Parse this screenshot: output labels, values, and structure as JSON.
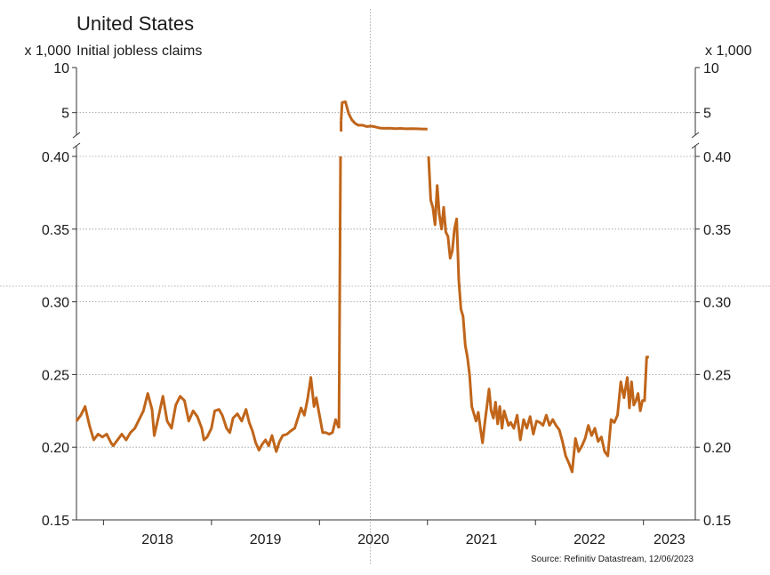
{
  "chart_data": {
    "type": "line",
    "title": "United States",
    "subtitle": "Initial jobless claims",
    "unit_left": "x 1,000",
    "unit_right": "x 1,000",
    "source": "Source: Refinitiv Datastream, 12/06/2023",
    "colors": {
      "line": "#c0651a",
      "grid": "#9a9a9a",
      "axis": "#333333"
    },
    "axis_break": true,
    "y_upper_ticks": [
      {
        "value": 10,
        "label": "10"
      },
      {
        "value": 5,
        "label": "5"
      }
    ],
    "y_upper_range": [
      2.7,
      10
    ],
    "y_ticks": [
      {
        "value": 0.4,
        "label": "0.40"
      },
      {
        "value": 0.35,
        "label": "0.35"
      },
      {
        "value": 0.3,
        "label": "0.30"
      },
      {
        "value": 0.25,
        "label": "0.25"
      },
      {
        "value": 0.2,
        "label": "0.20"
      },
      {
        "value": 0.15,
        "label": "0.15"
      }
    ],
    "y_range": [
      0.15,
      0.4
    ],
    "x_range": [
      2017.75,
      2023.48
    ],
    "x_ticks": [
      {
        "value": 2018.0,
        "label": "2018"
      },
      {
        "value": 2019.0,
        "label": "2019"
      },
      {
        "value": 2020.0,
        "label": "2020"
      },
      {
        "value": 2021.0,
        "label": "2021"
      },
      {
        "value": 2022.0,
        "label": "2022"
      },
      {
        "value": 2023.0,
        "label": "2023"
      }
    ],
    "grid": true,
    "series": [
      {
        "low": [
          [
            2017.75,
            0.218
          ],
          [
            2017.79,
            0.222
          ],
          [
            2017.83,
            0.228
          ],
          [
            2017.87,
            0.215
          ],
          [
            2017.91,
            0.205
          ],
          [
            2017.95,
            0.209
          ],
          [
            2017.99,
            0.207
          ],
          [
            2018.03,
            0.209
          ],
          [
            2018.07,
            0.203
          ],
          [
            2018.09,
            0.201
          ],
          [
            2018.13,
            0.205
          ],
          [
            2018.17,
            0.209
          ],
          [
            2018.21,
            0.205
          ],
          [
            2018.25,
            0.21
          ],
          [
            2018.29,
            0.213
          ],
          [
            2018.33,
            0.219
          ],
          [
            2018.37,
            0.225
          ],
          [
            2018.41,
            0.237
          ],
          [
            2018.45,
            0.226
          ],
          [
            2018.47,
            0.208
          ],
          [
            2018.51,
            0.221
          ],
          [
            2018.55,
            0.235
          ],
          [
            2018.59,
            0.218
          ],
          [
            2018.63,
            0.213
          ],
          [
            2018.67,
            0.229
          ],
          [
            2018.71,
            0.235
          ],
          [
            2018.75,
            0.232
          ],
          [
            2018.79,
            0.218
          ],
          [
            2018.83,
            0.225
          ],
          [
            2018.87,
            0.221
          ],
          [
            2018.91,
            0.213
          ],
          [
            2018.93,
            0.205
          ],
          [
            2018.96,
            0.207
          ],
          [
            2019.0,
            0.213
          ],
          [
            2019.03,
            0.225
          ],
          [
            2019.07,
            0.226
          ],
          [
            2019.1,
            0.222
          ],
          [
            2019.14,
            0.213
          ],
          [
            2019.17,
            0.21
          ],
          [
            2019.2,
            0.22
          ],
          [
            2019.24,
            0.223
          ],
          [
            2019.28,
            0.218
          ],
          [
            2019.32,
            0.226
          ],
          [
            2019.35,
            0.217
          ],
          [
            2019.38,
            0.211
          ],
          [
            2019.41,
            0.203
          ],
          [
            2019.44,
            0.198
          ],
          [
            2019.47,
            0.202
          ],
          [
            2019.5,
            0.205
          ],
          [
            2019.53,
            0.201
          ],
          [
            2019.56,
            0.208
          ],
          [
            2019.6,
            0.197
          ],
          [
            2019.63,
            0.204
          ],
          [
            2019.66,
            0.208
          ],
          [
            2019.7,
            0.209
          ],
          [
            2019.73,
            0.211
          ],
          [
            2019.77,
            0.213
          ],
          [
            2019.8,
            0.22
          ],
          [
            2019.83,
            0.227
          ],
          [
            2019.86,
            0.222
          ],
          [
            2019.89,
            0.233
          ],
          [
            2019.92,
            0.248
          ],
          [
            2019.95,
            0.228
          ],
          [
            2019.97,
            0.234
          ],
          [
            2020.0,
            0.222
          ],
          [
            2020.03,
            0.21
          ],
          [
            2020.06,
            0.21
          ],
          [
            2020.09,
            0.209
          ],
          [
            2020.12,
            0.21
          ],
          [
            2020.15,
            0.219
          ],
          [
            2020.18,
            0.213
          ]
        ],
        "high": [
          [
            2020.2,
            4.1
          ],
          [
            2020.21,
            6.1
          ],
          [
            2020.24,
            6.2
          ],
          [
            2020.27,
            4.9
          ],
          [
            2020.3,
            4.2
          ],
          [
            2020.33,
            3.8
          ],
          [
            2020.36,
            3.6
          ],
          [
            2020.4,
            3.6
          ],
          [
            2020.44,
            3.45
          ],
          [
            2020.48,
            3.5
          ],
          [
            2020.52,
            3.4
          ],
          [
            2020.56,
            3.28
          ],
          [
            2020.6,
            3.25
          ],
          [
            2020.65,
            3.26
          ],
          [
            2020.7,
            3.22
          ],
          [
            2020.75,
            3.24
          ],
          [
            2020.8,
            3.2
          ],
          [
            2020.85,
            3.22
          ],
          [
            2020.9,
            3.2
          ],
          [
            2020.95,
            3.18
          ],
          [
            2021.0,
            3.16
          ]
        ],
        "low_after": [
          [
            2021.01,
            0.4
          ],
          [
            2021.03,
            0.37
          ],
          [
            2021.05,
            0.365
          ],
          [
            2021.07,
            0.353
          ],
          [
            2021.09,
            0.38
          ],
          [
            2021.11,
            0.36
          ],
          [
            2021.13,
            0.35
          ],
          [
            2021.15,
            0.365
          ],
          [
            2021.17,
            0.348
          ],
          [
            2021.19,
            0.345
          ],
          [
            2021.21,
            0.33
          ],
          [
            2021.23,
            0.335
          ],
          [
            2021.25,
            0.35
          ],
          [
            2021.27,
            0.357
          ],
          [
            2021.29,
            0.315
          ],
          [
            2021.31,
            0.295
          ],
          [
            2021.33,
            0.29
          ],
          [
            2021.35,
            0.27
          ],
          [
            2021.37,
            0.262
          ],
          [
            2021.39,
            0.25
          ],
          [
            2021.41,
            0.228
          ],
          [
            2021.43,
            0.223
          ],
          [
            2021.45,
            0.218
          ],
          [
            2021.47,
            0.224
          ],
          [
            2021.49,
            0.213
          ],
          [
            2021.51,
            0.203
          ],
          [
            2021.53,
            0.216
          ],
          [
            2021.55,
            0.228
          ],
          [
            2021.57,
            0.24
          ],
          [
            2021.59,
            0.225
          ],
          [
            2021.61,
            0.22
          ],
          [
            2021.63,
            0.231
          ],
          [
            2021.65,
            0.216
          ],
          [
            2021.67,
            0.228
          ],
          [
            2021.69,
            0.213
          ],
          [
            2021.71,
            0.225
          ],
          [
            2021.73,
            0.22
          ],
          [
            2021.75,
            0.215
          ],
          [
            2021.77,
            0.217
          ],
          [
            2021.8,
            0.213
          ],
          [
            2021.83,
            0.222
          ],
          [
            2021.86,
            0.205
          ],
          [
            2021.89,
            0.219
          ],
          [
            2021.92,
            0.213
          ],
          [
            2021.95,
            0.221
          ],
          [
            2021.98,
            0.209
          ],
          [
            2022.01,
            0.218
          ],
          [
            2022.04,
            0.217
          ],
          [
            2022.07,
            0.215
          ],
          [
            2022.1,
            0.222
          ],
          [
            2022.13,
            0.215
          ],
          [
            2022.16,
            0.219
          ],
          [
            2022.19,
            0.215
          ],
          [
            2022.22,
            0.212
          ],
          [
            2022.25,
            0.204
          ],
          [
            2022.28,
            0.194
          ],
          [
            2022.31,
            0.189
          ],
          [
            2022.34,
            0.183
          ],
          [
            2022.37,
            0.206
          ],
          [
            2022.4,
            0.197
          ],
          [
            2022.43,
            0.201
          ],
          [
            2022.46,
            0.206
          ],
          [
            2022.49,
            0.215
          ],
          [
            2022.52,
            0.208
          ],
          [
            2022.55,
            0.213
          ],
          [
            2022.58,
            0.204
          ],
          [
            2022.61,
            0.207
          ],
          [
            2022.64,
            0.197
          ],
          [
            2022.67,
            0.194
          ],
          [
            2022.7,
            0.219
          ],
          [
            2022.73,
            0.217
          ],
          [
            2022.76,
            0.222
          ],
          [
            2022.79,
            0.245
          ],
          [
            2022.82,
            0.234
          ],
          [
            2022.85,
            0.248
          ],
          [
            2022.87,
            0.227
          ],
          [
            2022.89,
            0.245
          ],
          [
            2022.91,
            0.229
          ],
          [
            2022.93,
            0.232
          ],
          [
            2022.95,
            0.237
          ],
          [
            2022.97,
            0.225
          ],
          [
            2022.99,
            0.232
          ],
          [
            2023.01,
            0.232
          ],
          [
            2023.03,
            0.262
          ],
          [
            2023.05,
            0.262
          ]
        ]
      }
    ]
  }
}
